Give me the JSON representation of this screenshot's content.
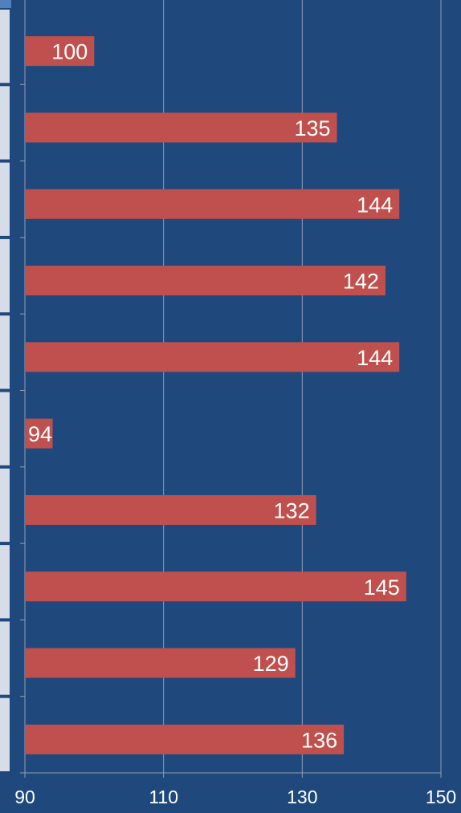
{
  "chart_data": {
    "type": "bar",
    "orientation": "horizontal",
    "values": [
      100,
      135,
      144,
      142,
      144,
      94,
      132,
      145,
      129,
      136
    ],
    "xlim": [
      90,
      150
    ],
    "x_ticks": [
      "90",
      "110",
      "130",
      "150"
    ],
    "grid": true,
    "title": "",
    "xlabel": "",
    "ylabel": ""
  },
  "colors": {
    "background": "#1f497d",
    "bar": "#c0504d",
    "grid": "#8f9fb3",
    "text": "#ffffff",
    "row_panel": "#d6dce8"
  }
}
